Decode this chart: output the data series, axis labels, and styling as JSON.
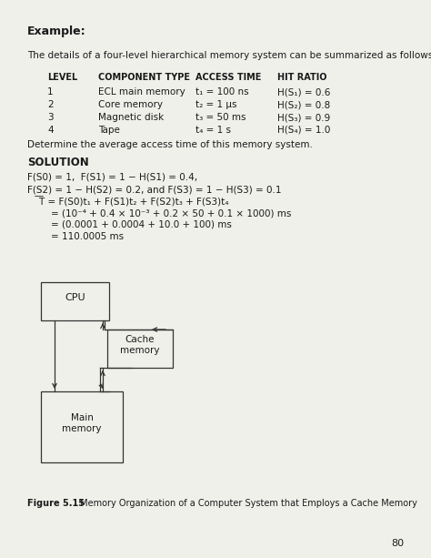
{
  "title": "Example:",
  "intro": "The details of a four-level hierarchical memory system can be summarized as follows:",
  "table_headers": [
    "LEVEL",
    "COMPONENT TYPE",
    "ACCESS TIME",
    "HIT RATIO"
  ],
  "table_rows": [
    [
      "1",
      "ECL main memory",
      "t₁ = 100 ns",
      "H(S₁) = 0.6"
    ],
    [
      "2",
      "Core memory",
      "t₂ = 1 μs",
      "H(S₂) = 0.8"
    ],
    [
      "3",
      "Magnetic disk",
      "t₃ = 50 ms",
      "H(S₃) = 0.9"
    ],
    [
      "4",
      "Tape",
      "t₄ = 1 s",
      "H(S₄) = 1.0"
    ]
  ],
  "determine": "Determine the average access time of this memory system.",
  "solution_label": "SOLUTION",
  "sol_line1": "F(S0) = 1,  F(S1) = 1 − H(S1) = 0.4,",
  "sol_line2": "F(S2) = 1 − H(S2) = 0.2, and F(S3) = 1 − H(S3) = 0.1",
  "sol_line3": "    ͞T = F(S0)t₁ + F(S1)t₂ + F(S2)t₃ + F(S3)t₄",
  "sol_line4": "        = (10⁻⁴ + 0.4 × 10⁻³ + 0.2 × 50 + 0.1 × 1000) ms",
  "sol_line5": "        = (0.0001 + 0.0004 + 10.0 + 100) ms",
  "sol_line6": "        = 110.0005 ms",
  "fig_bold": "Figure 5.15",
  "fig_normal": " Memory Organization of a Computer System that Employs a Cache Memory",
  "page_number": "80",
  "bg_color": "#f0f0eb",
  "text_color": "#1a1a1a"
}
